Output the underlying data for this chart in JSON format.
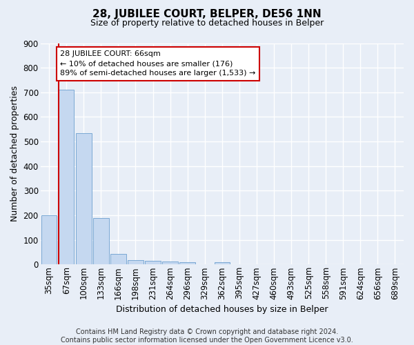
{
  "title": "28, JUBILEE COURT, BELPER, DE56 1NN",
  "subtitle": "Size of property relative to detached houses in Belper",
  "xlabel": "Distribution of detached houses by size in Belper",
  "ylabel": "Number of detached properties",
  "bar_color": "#c5d8f0",
  "bar_edge_color": "#7aa8d4",
  "background_color": "#e8eef7",
  "grid_color": "#ffffff",
  "categories": [
    "35sqm",
    "67sqm",
    "100sqm",
    "133sqm",
    "166sqm",
    "198sqm",
    "231sqm",
    "264sqm",
    "296sqm",
    "329sqm",
    "362sqm",
    "395sqm",
    "427sqm",
    "460sqm",
    "493sqm",
    "525sqm",
    "558sqm",
    "591sqm",
    "624sqm",
    "656sqm",
    "689sqm"
  ],
  "values": [
    200,
    710,
    535,
    190,
    42,
    18,
    15,
    13,
    10,
    0,
    9,
    0,
    0,
    0,
    0,
    0,
    0,
    0,
    0,
    0,
    0
  ],
  "ylim": [
    0,
    900
  ],
  "yticks": [
    0,
    100,
    200,
    300,
    400,
    500,
    600,
    700,
    800,
    900
  ],
  "annotation_line1": "28 JUBILEE COURT: 66sqm",
  "annotation_line2": "← 10% of detached houses are smaller (176)",
  "annotation_line3": "89% of semi-detached houses are larger (1,533) →",
  "footer_line1": "Contains HM Land Registry data © Crown copyright and database right 2024.",
  "footer_line2": "Contains public sector information licensed under the Open Government Licence v3.0.",
  "red_line_color": "#cc0000",
  "annotation_box_edge_color": "#cc0000",
  "annotation_box_face_color": "#ffffff",
  "title_fontsize": 11,
  "subtitle_fontsize": 9,
  "ylabel_fontsize": 9,
  "xlabel_fontsize": 9,
  "tick_fontsize": 8.5,
  "annotation_fontsize": 8,
  "footer_fontsize": 7
}
